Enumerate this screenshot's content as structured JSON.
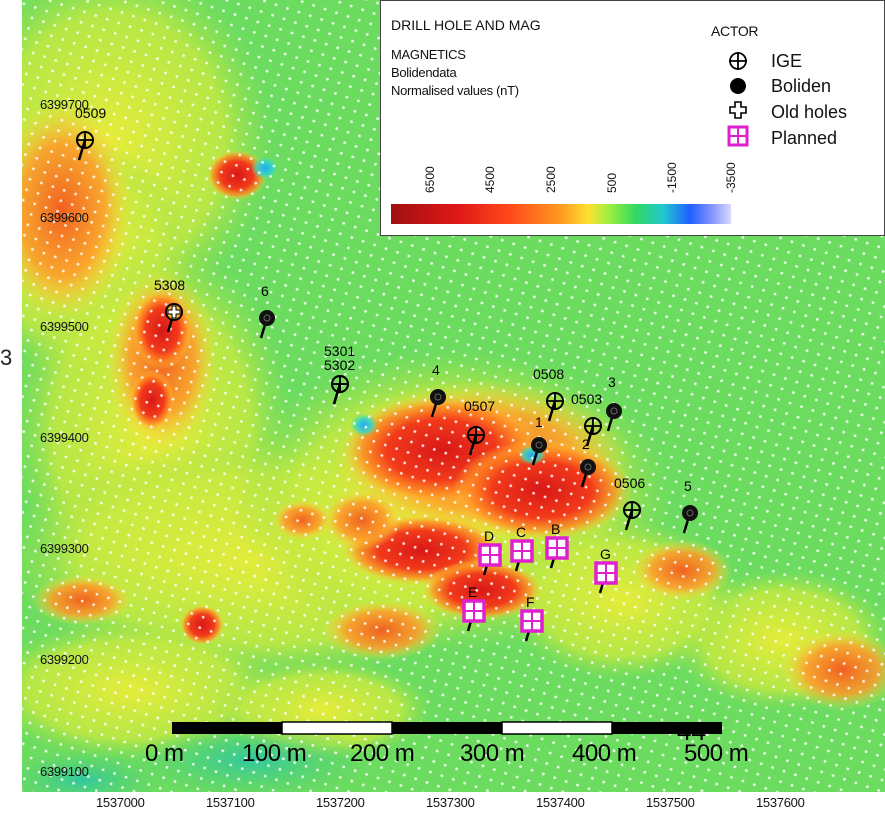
{
  "legend": {
    "title": "DRILL HOLE AND MAG",
    "subtitle": "MAGNETICS",
    "source": "Bolidendata",
    "units": "Normalised values (nT)",
    "actor_title": "ACTOR",
    "actors": [
      {
        "label": "IGE",
        "symbol": "circle-cross"
      },
      {
        "label": "Boliden",
        "symbol": "filled-circle"
      },
      {
        "label": "Old holes",
        "symbol": "plus-outline"
      },
      {
        "label": "Planned",
        "symbol": "magenta-square"
      }
    ],
    "color_ticks": [
      "6500",
      "4500",
      "2500",
      "500",
      "-1500",
      "-3500"
    ]
  },
  "axes": {
    "y_ticks": [
      "6399700",
      "6399600",
      "6399500",
      "6399400",
      "6399300",
      "6399200",
      "6399100"
    ],
    "x_ticks": [
      "1537000",
      "1537100",
      "1537200",
      "1537300",
      "1537400",
      "1537500",
      "1537600"
    ]
  },
  "scalebar": {
    "labels": [
      "0 m",
      "100 m",
      "200 m",
      "300 m",
      "400 m",
      "500 m"
    ]
  },
  "edge_text": "3",
  "overlay_text": "44",
  "holes": [
    {
      "label": "0509",
      "type": "ige"
    },
    {
      "label": "5308",
      "type": "old"
    },
    {
      "label": "6",
      "type": "boliden"
    },
    {
      "label": "5301",
      "type": "ige"
    },
    {
      "label": "5302",
      "type": "ige"
    },
    {
      "label": "4",
      "type": "boliden"
    },
    {
      "label": "0507",
      "type": "ige"
    },
    {
      "label": "0508",
      "type": "ige"
    },
    {
      "label": "0503",
      "type": "ige"
    },
    {
      "label": "3",
      "type": "boliden"
    },
    {
      "label": "1",
      "type": "boliden"
    },
    {
      "label": "2",
      "type": "boliden"
    },
    {
      "label": "0506",
      "type": "ige"
    },
    {
      "label": "5",
      "type": "boliden"
    },
    {
      "label": "D",
      "type": "planned"
    },
    {
      "label": "C",
      "type": "planned"
    },
    {
      "label": "B",
      "type": "planned"
    },
    {
      "label": "G",
      "type": "planned"
    },
    {
      "label": "E",
      "type": "planned"
    },
    {
      "label": "F",
      "type": "planned"
    }
  ]
}
